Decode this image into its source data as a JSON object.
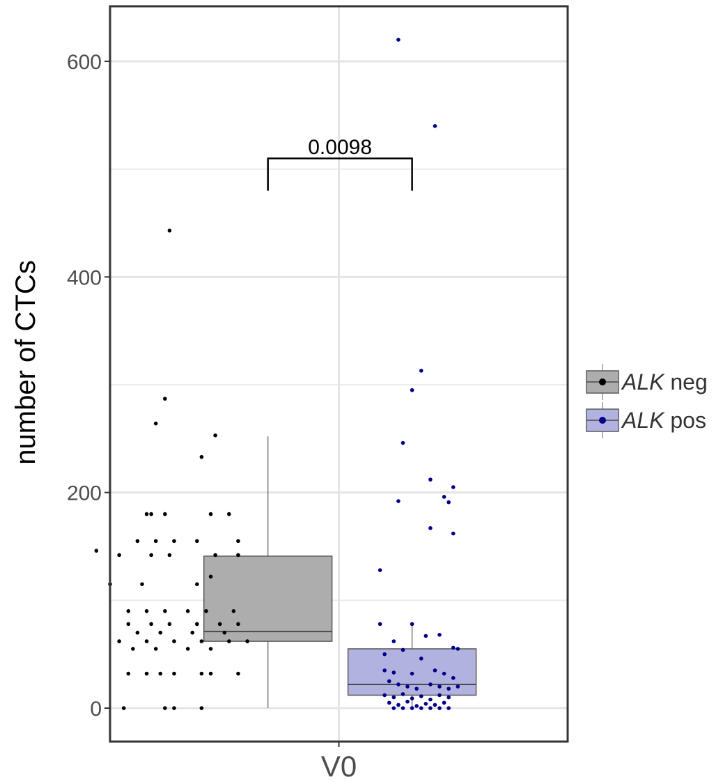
{
  "chart_data": {
    "type": "box",
    "ylabel": "number of CTCs",
    "xlabel": "",
    "categories": [
      "V0"
    ],
    "ylim": [
      -30,
      650
    ],
    "yticks": [
      0,
      200,
      400,
      600
    ],
    "grid": true,
    "legend_position": "right",
    "annotation": {
      "text": "0.0098",
      "between": [
        "ALK neg",
        "ALK pos"
      ],
      "y": 510
    },
    "series": [
      {
        "name_italic": "ALK",
        "name_rest": " neg",
        "fill": "#adadad",
        "point_color": "#000000",
        "box": {
          "q1": 62,
          "median": 71,
          "q3": 141,
          "whisker_low": 0,
          "whisker_high": 252
        },
        "points": [
          [
            0.13,
            443
          ],
          [
            0.12,
            287
          ],
          [
            0.1,
            264
          ],
          [
            0.23,
            253
          ],
          [
            0.2,
            233
          ],
          [
            0.12,
            180
          ],
          [
            0.09,
            180
          ],
          [
            0.08,
            180
          ],
          [
            0.26,
            180
          ],
          [
            0.22,
            180
          ],
          [
            0.06,
            155
          ],
          [
            0.1,
            155
          ],
          [
            0.28,
            155
          ],
          [
            0.14,
            155
          ],
          [
            0.19,
            155
          ],
          [
            -0.03,
            146
          ],
          [
            0.02,
            142
          ],
          [
            0.09,
            142
          ],
          [
            0.13,
            142
          ],
          [
            0.23,
            142
          ],
          [
            0.28,
            142
          ],
          [
            0.0,
            115
          ],
          [
            0.07,
            115
          ],
          [
            0.19,
            115
          ],
          [
            0.22,
            122
          ],
          [
            0.04,
            90
          ],
          [
            0.08,
            90
          ],
          [
            0.12,
            90
          ],
          [
            0.17,
            90
          ],
          [
            0.21,
            90
          ],
          [
            0.27,
            90
          ],
          [
            0.04,
            78
          ],
          [
            0.09,
            78
          ],
          [
            0.13,
            78
          ],
          [
            0.19,
            78
          ],
          [
            0.24,
            78
          ],
          [
            0.28,
            78
          ],
          [
            0.06,
            70
          ],
          [
            0.11,
            70
          ],
          [
            0.18,
            70
          ],
          [
            0.25,
            70
          ],
          [
            0.02,
            62
          ],
          [
            0.08,
            62
          ],
          [
            0.14,
            62
          ],
          [
            0.2,
            62
          ],
          [
            0.26,
            62
          ],
          [
            0.3,
            62
          ],
          [
            0.05,
            55
          ],
          [
            0.1,
            55
          ],
          [
            0.17,
            55
          ],
          [
            0.22,
            55
          ],
          [
            0.04,
            32
          ],
          [
            0.08,
            32
          ],
          [
            0.11,
            32
          ],
          [
            0.14,
            32
          ],
          [
            0.2,
            32
          ],
          [
            0.22,
            32
          ],
          [
            0.28,
            32
          ],
          [
            0.03,
            0
          ],
          [
            0.12,
            0
          ],
          [
            0.14,
            0
          ],
          [
            0.2,
            0
          ]
        ]
      },
      {
        "name_italic": "ALK",
        "name_rest": " pos",
        "fill": "#b2b2e0",
        "point_color": "#00008b",
        "box": {
          "q1": 12,
          "median": 22,
          "q3": 55,
          "whisker_low": 0,
          "whisker_high": 78
        },
        "points": [
          [
            0.63,
            620
          ],
          [
            0.71,
            540
          ],
          [
            0.68,
            313
          ],
          [
            0.66,
            295
          ],
          [
            0.64,
            246
          ],
          [
            0.7,
            212
          ],
          [
            0.75,
            205
          ],
          [
            0.73,
            196
          ],
          [
            0.74,
            191
          ],
          [
            0.63,
            192
          ],
          [
            0.7,
            167
          ],
          [
            0.75,
            162
          ],
          [
            0.59,
            128
          ],
          [
            0.59,
            78
          ],
          [
            0.66,
            78
          ],
          [
            0.72,
            68
          ],
          [
            0.69,
            67
          ],
          [
            0.62,
            62
          ],
          [
            0.75,
            56
          ],
          [
            0.76,
            55
          ],
          [
            0.6,
            50
          ],
          [
            0.64,
            54
          ],
          [
            0.68,
            46
          ],
          [
            0.6,
            35
          ],
          [
            0.62,
            33
          ],
          [
            0.66,
            32
          ],
          [
            0.71,
            35
          ],
          [
            0.73,
            32
          ],
          [
            0.75,
            28
          ],
          [
            0.61,
            25
          ],
          [
            0.63,
            22
          ],
          [
            0.65,
            20
          ],
          [
            0.67,
            18
          ],
          [
            0.7,
            22
          ],
          [
            0.72,
            20
          ],
          [
            0.74,
            18
          ],
          [
            0.76,
            20
          ],
          [
            0.6,
            12
          ],
          [
            0.62,
            10
          ],
          [
            0.64,
            13
          ],
          [
            0.66,
            9
          ],
          [
            0.68,
            11
          ],
          [
            0.7,
            8
          ],
          [
            0.72,
            12
          ],
          [
            0.74,
            10
          ],
          [
            0.61,
            5
          ],
          [
            0.63,
            3
          ],
          [
            0.65,
            6
          ],
          [
            0.67,
            2
          ],
          [
            0.69,
            4
          ],
          [
            0.71,
            3
          ],
          [
            0.73,
            5
          ],
          [
            0.62,
            0
          ],
          [
            0.64,
            0
          ],
          [
            0.66,
            0
          ],
          [
            0.68,
            0
          ],
          [
            0.7,
            0
          ],
          [
            0.72,
            0
          ],
          [
            0.74,
            0
          ]
        ]
      }
    ]
  }
}
